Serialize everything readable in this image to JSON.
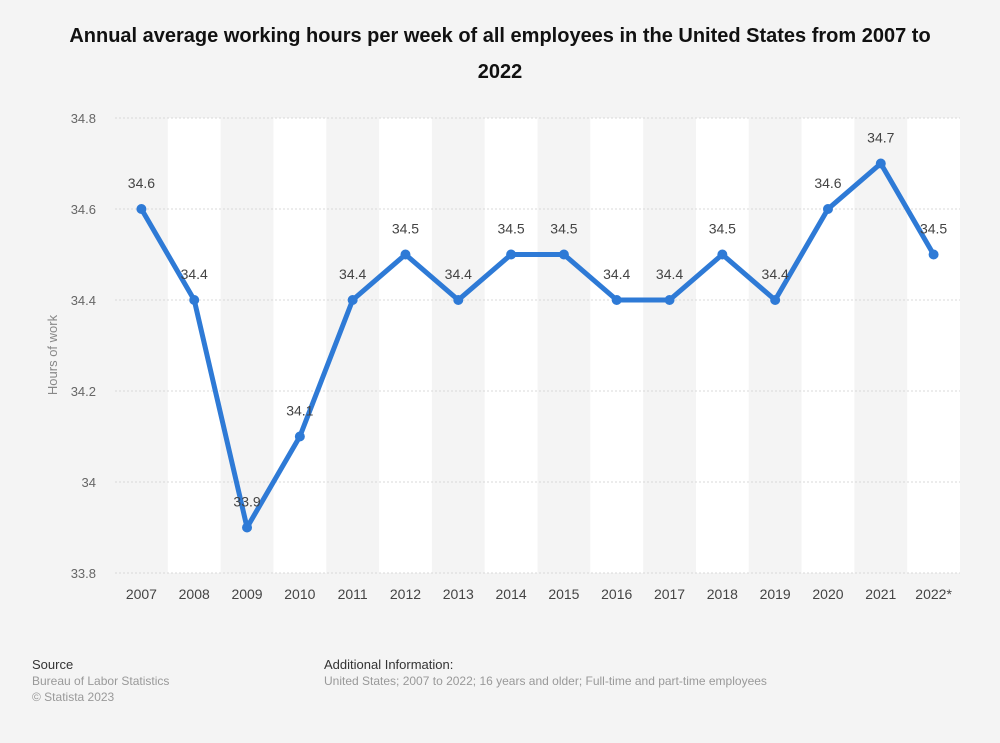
{
  "chart_data": {
    "type": "line",
    "title": "Annual average working hours per week of all employees in the United States from 2007 to 2022",
    "ylabel": "Hours of work",
    "xlabel": "",
    "categories": [
      "2007",
      "2008",
      "2009",
      "2010",
      "2011",
      "2012",
      "2013",
      "2014",
      "2015",
      "2016",
      "2017",
      "2018",
      "2019",
      "2020",
      "2021",
      "2022*"
    ],
    "series": [
      {
        "values": [
          34.6,
          34.4,
          33.9,
          34.1,
          34.4,
          34.5,
          34.4,
          34.5,
          34.5,
          34.4,
          34.4,
          34.5,
          34.4,
          34.6,
          34.7,
          34.5
        ]
      }
    ],
    "ylim": [
      33.8,
      34.8
    ],
    "yticks": [
      33.8,
      34,
      34.2,
      34.4,
      34.6,
      34.8
    ],
    "ytick_labels": [
      "33.8",
      "34",
      "34.2",
      "34.4",
      "34.6",
      "34.8"
    ],
    "data_labels": [
      "34.6",
      "34.4",
      "33.9",
      "34.1",
      "34.4",
      "34.5",
      "34.4",
      "34.5",
      "34.5",
      "34.4",
      "34.4",
      "34.5",
      "34.4",
      "34.6",
      "34.7",
      "34.5"
    ],
    "grid": true,
    "colors": {
      "line": "#2e7ad6",
      "band": "#ffffff",
      "background": "#f4f4f4",
      "grid": "#d9d9d9"
    }
  },
  "footer": {
    "source_heading": "Source",
    "source_lines": [
      "Bureau of Labor Statistics",
      "© Statista 2023"
    ],
    "info_heading": "Additional Information:",
    "info_text": "United States; 2007 to 2022; 16 years and older; Full-time and part-time employees"
  }
}
